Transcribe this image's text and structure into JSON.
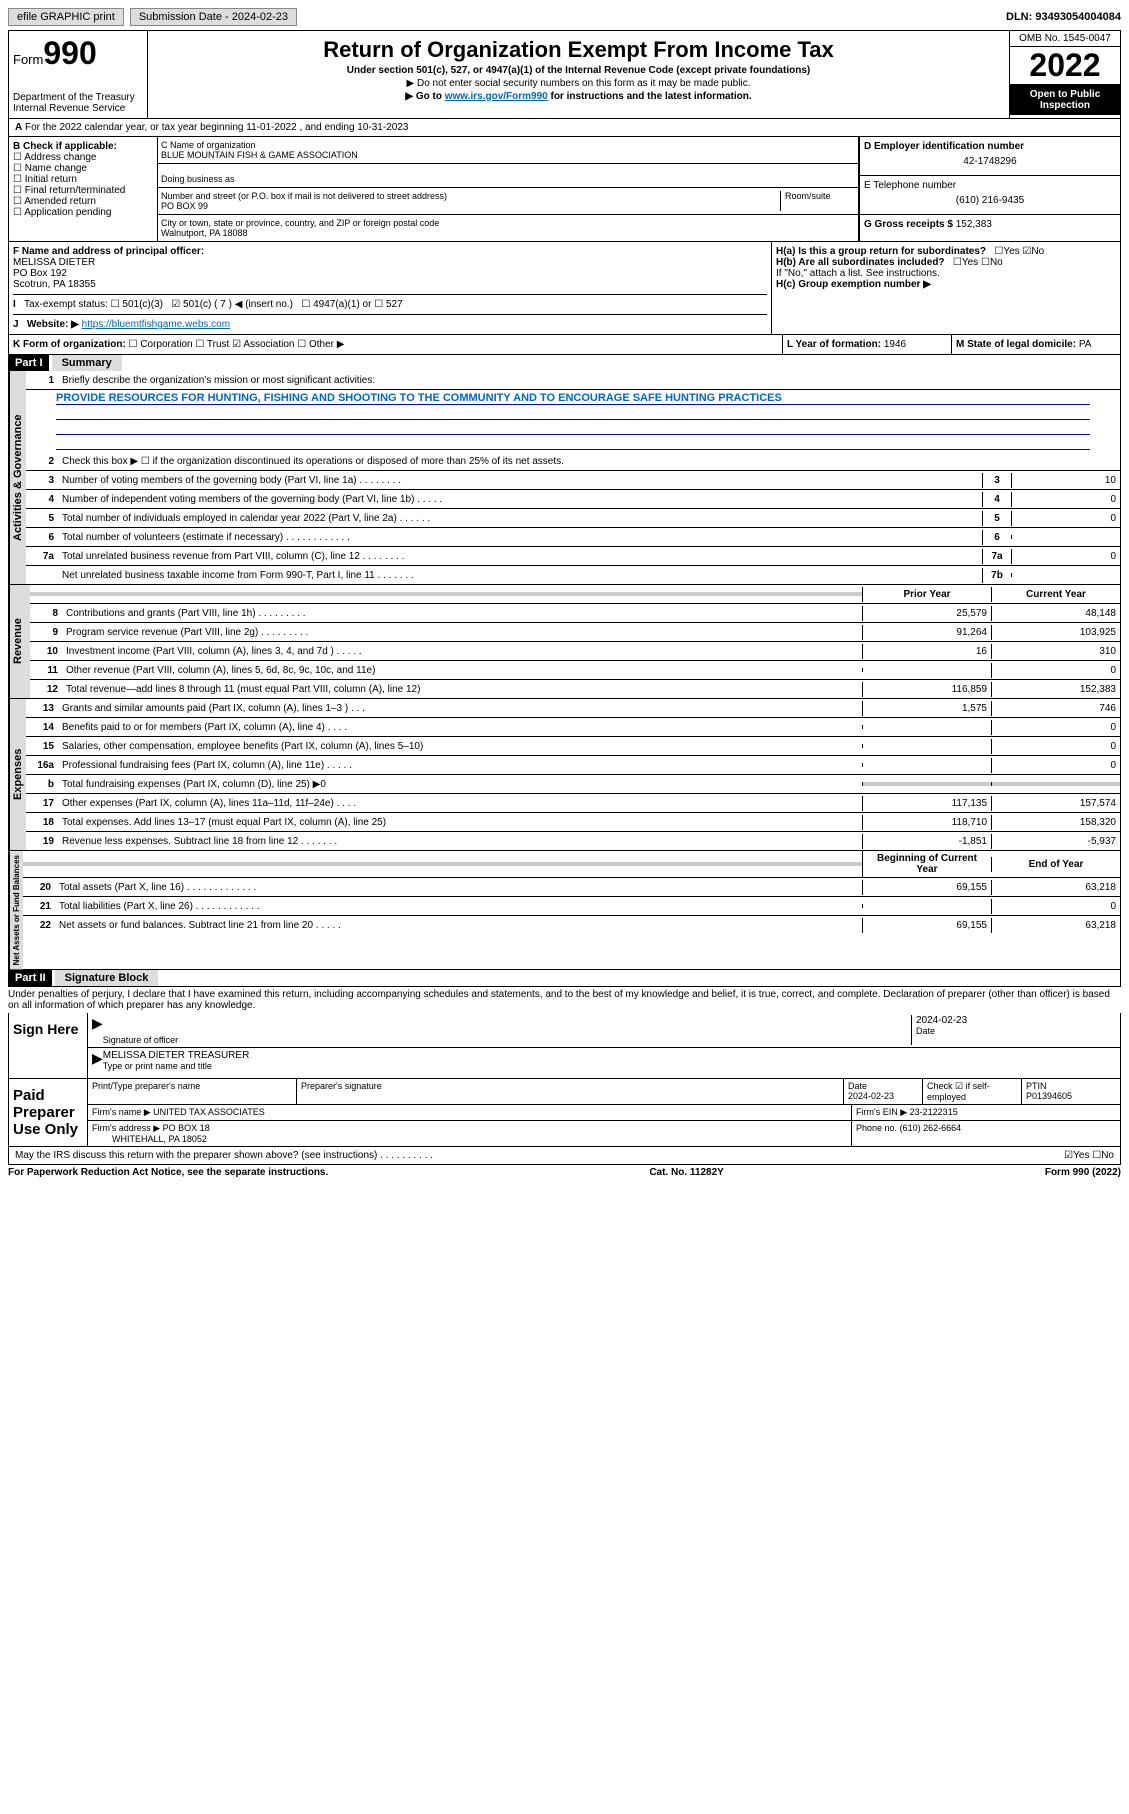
{
  "topbar": {
    "efile": "efile GRAPHIC print",
    "submission_label": "Submission Date - 2024-02-23",
    "dln": "DLN: 93493054004084"
  },
  "header": {
    "form_label": "Form",
    "form_num": "990",
    "dept": "Department of the Treasury",
    "irs": "Internal Revenue Service",
    "title": "Return of Organization Exempt From Income Tax",
    "sub1": "Under section 501(c), 527, or 4947(a)(1) of the Internal Revenue Code (except private foundations)",
    "sub2": "▶ Do not enter social security numbers on this form as it may be made public.",
    "sub3_pre": "▶ Go to ",
    "sub3_link": "www.irs.gov/Form990",
    "sub3_post": " for instructions and the latest information.",
    "omb": "OMB No. 1545-0047",
    "year": "2022",
    "inspect": "Open to Public Inspection"
  },
  "line_a": "For the 2022 calendar year, or tax year beginning 11-01-2022   , and ending 10-31-2023",
  "box_b": {
    "label": "B Check if applicable:",
    "items": [
      "Address change",
      "Name change",
      "Initial return",
      "Final return/terminated",
      "Amended return",
      "Application pending"
    ]
  },
  "box_c": {
    "label": "C Name of organization",
    "name": "BLUE MOUNTAIN FISH & GAME ASSOCIATION",
    "dba": "Doing business as",
    "street_label": "Number and street (or P.O. box if mail is not delivered to street address)",
    "room": "Room/suite",
    "street": "PO BOX 99",
    "city_label": "City or town, state or province, country, and ZIP or foreign postal code",
    "city": "Walnutport, PA  18088"
  },
  "box_d": {
    "label": "D Employer identification number",
    "val": "42-1748296"
  },
  "box_e": {
    "label": "E Telephone number",
    "val": "(610) 216-9435"
  },
  "box_g": {
    "label": "G Gross receipts $",
    "val": "152,383"
  },
  "box_f": {
    "label": "F Name and address of principal officer:",
    "name": "MELISSA DIETER",
    "addr1": "PO Box 192",
    "addr2": "Scotrun, PA  18355"
  },
  "box_h": {
    "a": "H(a)  Is this a group return for subordinates?",
    "b": "H(b)  Are all subordinates included?",
    "b_note": "If \"No,\" attach a list. See instructions.",
    "c": "H(c)  Group exemption number ▶",
    "yes": "Yes",
    "no": "No"
  },
  "box_i": {
    "label": "Tax-exempt status:",
    "o1": "501(c)(3)",
    "o2": "501(c) ( 7 ) ◀ (insert no.)",
    "o3": "4947(a)(1) or",
    "o4": "527"
  },
  "box_j": {
    "label": "Website: ▶",
    "val": "https://bluemtfishgame.webs.com"
  },
  "box_k": {
    "label": "K Form of organization:",
    "o1": "Corporation",
    "o2": "Trust",
    "o3": "Association",
    "o4": "Other ▶"
  },
  "box_l": {
    "label": "L Year of formation:",
    "val": "1946"
  },
  "box_m": {
    "label": "M State of legal domicile:",
    "val": "PA"
  },
  "part1": {
    "hdr": "Part I",
    "title": "Summary",
    "l1": "Briefly describe the organization's mission or most significant activities:",
    "mission": "PROVIDE RESOURCES FOR HUNTING, FISHING AND SHOOTING TO THE COMMUNITY AND TO ENCOURAGE SAFE HUNTING PRACTICES",
    "l2": "Check this box ▶ ☐  if the organization discontinued its operations or disposed of more than 25% of its net assets.",
    "vtab_ag": "Activities & Governance",
    "vtab_rev": "Revenue",
    "vtab_exp": "Expenses",
    "vtab_na": "Net Assets or Fund Balances",
    "prior": "Prior Year",
    "current": "Current Year",
    "begin": "Beginning of Current Year",
    "end": "End of Year",
    "rows_ag": [
      {
        "n": "3",
        "d": "Number of voting members of the governing body (Part VI, line 1a)   .    .    .    .    .    .    .    .",
        "b": "3",
        "v": "10"
      },
      {
        "n": "4",
        "d": "Number of independent voting members of the governing body (Part VI, line 1b)  .    .    .    .    .",
        "b": "4",
        "v": "0"
      },
      {
        "n": "5",
        "d": "Total number of individuals employed in calendar year 2022 (Part V, line 2a)   .    .    .    .    .    .",
        "b": "5",
        "v": "0"
      },
      {
        "n": "6",
        "d": "Total number of volunteers (estimate if necessary)   .    .    .    .    .    .    .    .    .    .    .    .",
        "b": "6",
        "v": ""
      },
      {
        "n": "7a",
        "d": "Total unrelated business revenue from Part VIII, column (C), line 12  .    .    .    .    .    .    .    .",
        "b": "7a",
        "v": "0"
      },
      {
        "n": "",
        "d": "Net unrelated business taxable income from Form 990-T, Part I, line 11  .    .    .    .    .    .    .",
        "b": "7b",
        "v": ""
      }
    ],
    "rows_rev": [
      {
        "n": "8",
        "d": "Contributions and grants (Part VIII, line 1h)    .    .    .    .    .    .    .    .    .",
        "p": "25,579",
        "c": "48,148"
      },
      {
        "n": "9",
        "d": "Program service revenue (Part VIII, line 2g)   .    .    .    .    .    .    .    .    .",
        "p": "91,264",
        "c": "103,925"
      },
      {
        "n": "10",
        "d": "Investment income (Part VIII, column (A), lines 3, 4, and 7d )  .    .    .    .    .",
        "p": "16",
        "c": "310"
      },
      {
        "n": "11",
        "d": "Other revenue (Part VIII, column (A), lines 5, 6d, 8c, 9c, 10c, and 11e)",
        "p": "",
        "c": "0"
      },
      {
        "n": "12",
        "d": "Total revenue—add lines 8 through 11 (must equal Part VIII, column (A), line 12)",
        "p": "116,859",
        "c": "152,383"
      }
    ],
    "rows_exp": [
      {
        "n": "13",
        "d": "Grants and similar amounts paid (Part IX, column (A), lines 1–3 )  .    .    .",
        "p": "1,575",
        "c": "746"
      },
      {
        "n": "14",
        "d": "Benefits paid to or for members (Part IX, column (A), line 4)  .    .    .    .",
        "p": "",
        "c": "0"
      },
      {
        "n": "15",
        "d": "Salaries, other compensation, employee benefits (Part IX, column (A), lines 5–10)",
        "p": "",
        "c": "0"
      },
      {
        "n": "16a",
        "d": "Professional fundraising fees (Part IX, column (A), line 11e)  .    .    .    .    .",
        "p": "",
        "c": "0"
      },
      {
        "n": "b",
        "d": "Total fundraising expenses (Part IX, column (D), line 25) ▶0",
        "p": "shade",
        "c": "shade"
      },
      {
        "n": "17",
        "d": "Other expenses (Part IX, column (A), lines 11a–11d, 11f–24e)  .    .    .    .",
        "p": "117,135",
        "c": "157,574"
      },
      {
        "n": "18",
        "d": "Total expenses. Add lines 13–17 (must equal Part IX, column (A), line 25)",
        "p": "118,710",
        "c": "158,320"
      },
      {
        "n": "19",
        "d": "Revenue less expenses. Subtract line 18 from line 12  .    .    .    .    .    .    .",
        "p": "-1,851",
        "c": "-5,937"
      }
    ],
    "rows_na": [
      {
        "n": "20",
        "d": "Total assets (Part X, line 16)   .    .    .    .    .    .    .    .    .    .    .    .    .",
        "p": "69,155",
        "c": "63,218"
      },
      {
        "n": "21",
        "d": "Total liabilities (Part X, line 26)   .    .    .    .    .    .    .    .    .    .    .    .",
        "p": "",
        "c": "0"
      },
      {
        "n": "22",
        "d": "Net assets or fund balances. Subtract line 21 from line 20  .    .    .    .    .",
        "p": "69,155",
        "c": "63,218"
      }
    ]
  },
  "part2": {
    "hdr": "Part II",
    "title": "Signature Block"
  },
  "declare": "Under penalties of perjury, I declare that I have examined this return, including accompanying schedules and statements, and to the best of my knowledge and belief, it is true, correct, and complete. Declaration of preparer (other than officer) is based on all information of which preparer has any knowledge.",
  "sign": {
    "here": "Sign Here",
    "sig_officer": "Signature of officer",
    "date": "Date",
    "date_val": "2024-02-23",
    "name": "MELISSA DIETER  TREASURER",
    "name_label": "Type or print name and title"
  },
  "paid": {
    "label": "Paid Preparer Use Only",
    "h1": "Print/Type preparer's name",
    "h2": "Preparer's signature",
    "h3": "Date",
    "h4": "Check ☑ if self-employed",
    "h5": "PTIN",
    "date": "2024-02-23",
    "ptin": "P01394605",
    "firm_name_l": "Firm's name    ▶",
    "firm_name": "UNITED TAX ASSOCIATES",
    "firm_ein_l": "Firm's EIN ▶",
    "firm_ein": "23-2122315",
    "firm_addr_l": "Firm's address ▶",
    "firm_addr1": "PO BOX 18",
    "firm_addr2": "WHITEHALL, PA  18052",
    "phone_l": "Phone no.",
    "phone": "(610) 262-6664"
  },
  "may_irs": "May the IRS discuss this return with the preparer shown above? (see instructions)   .    .    .    .    .    .    .    .    .    .",
  "footer": {
    "l": "For Paperwork Reduction Act Notice, see the separate instructions.",
    "m": "Cat. No. 11282Y",
    "r": "Form 990 (2022)"
  }
}
